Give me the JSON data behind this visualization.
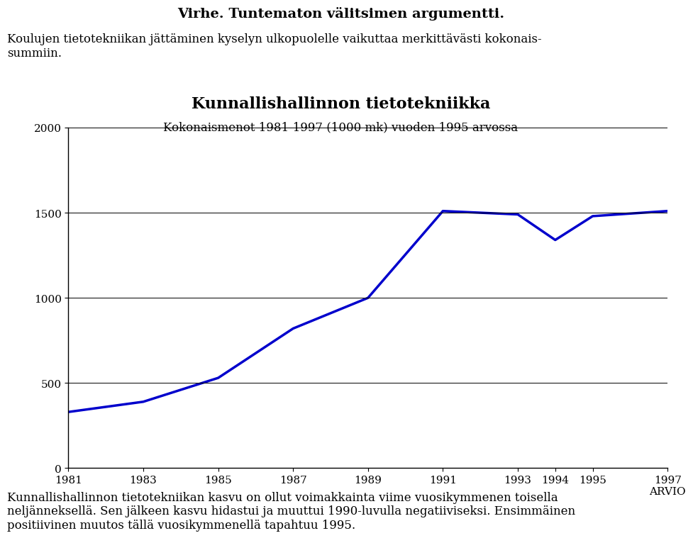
{
  "title_main": "Kunnallishallinnon tietotekniikka",
  "subtitle": "Kokonaismenot 1981-1997 (1000 mk) vuoden 1995 arvossa",
  "header_bold": "Virhe. Tuntematon välitsimen argumentti.",
  "header_text": "Koulujen tietotekniikan jättäminen kyselyn ulkopuolelle vaikuttaa merkittävästi kokonais-\nsummiin.",
  "footer_text": "Kunnallishallinnon tietotekniikan kasvu on ollut voimakkainta viime vuosikymmenen toisella\nneljänneksellä. Sen jälkeen kasvu hidastui ja muuttui 1990-luvulla negatiiviseksi. Ensimmäinen\npositiivinen muutos tällä vuosikymmenellä tapahtuu 1995.",
  "x_values": [
    1981,
    1983,
    1985,
    1987,
    1989,
    1991,
    1993,
    1994,
    1995,
    1997
  ],
  "y_values": [
    330,
    390,
    530,
    820,
    1000,
    1510,
    1490,
    1340,
    1480,
    1510
  ],
  "x_tick_labels": [
    "1981",
    "1983",
    "1985",
    "1987",
    "1989",
    "1991",
    "1993",
    "1994",
    "1995",
    "1997\nARVIO"
  ],
  "ylim": [
    0,
    2000
  ],
  "yticks": [
    0,
    500,
    1000,
    1500,
    2000
  ],
  "line_color": "#0000cc",
  "line_width": 2.5,
  "bg_color": "#ffffff",
  "grid_color": "#000000",
  "title_fontsize": 16,
  "subtitle_fontsize": 12,
  "tick_fontsize": 11,
  "header_bold_fontsize": 14,
  "header_text_fontsize": 12,
  "footer_fontsize": 12
}
